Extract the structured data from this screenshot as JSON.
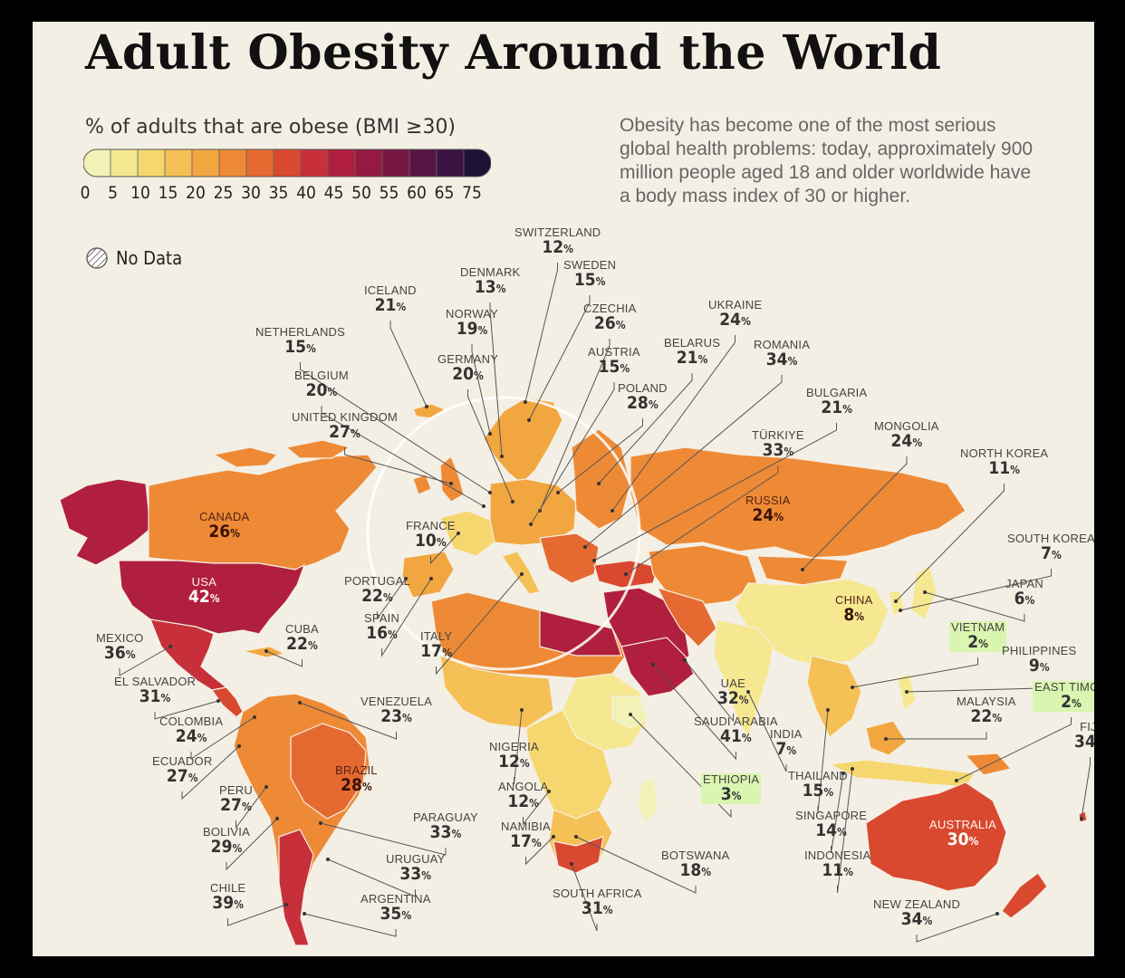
{
  "title": "Adult Obesity Around the World",
  "legend": {
    "title": "% of adults that are obese (BMI ≥30)",
    "ticks": [
      "0",
      "5",
      "10",
      "15",
      "20",
      "25",
      "30",
      "35",
      "40",
      "45",
      "50",
      "55",
      "60",
      "65",
      "75"
    ],
    "colors": [
      "#f2f2b6",
      "#f6e891",
      "#f6d66e",
      "#f5c055",
      "#f2a640",
      "#ee8a36",
      "#e56a32",
      "#d9492f",
      "#c7303a",
      "#b01f3d",
      "#941a42",
      "#761743",
      "#561545",
      "#3b1343",
      "#1f1036"
    ],
    "no_data_label": "No Data"
  },
  "description": "Obesity has become one of the most serious global health problems: today, approximately 900 million people aged 18 and older worldwide have a body mass index of 30 or higher.",
  "percent_sign": "%",
  "countries": [
    {
      "name": "SWITZERLAND",
      "value": 12
    },
    {
      "name": "DENMARK",
      "value": 13
    },
    {
      "name": "SWEDEN",
      "value": 15
    },
    {
      "name": "ICELAND",
      "value": 21
    },
    {
      "name": "NORWAY",
      "value": 19
    },
    {
      "name": "CZECHIA",
      "value": 26
    },
    {
      "name": "UKRAINE",
      "value": 24
    },
    {
      "name": "NETHERLANDS",
      "value": 15
    },
    {
      "name": "GERMANY",
      "value": 20
    },
    {
      "name": "AUSTRIA",
      "value": 15
    },
    {
      "name": "BELARUS",
      "value": 21
    },
    {
      "name": "ROMANIA",
      "value": 34
    },
    {
      "name": "BELGIUM",
      "value": 20
    },
    {
      "name": "POLAND",
      "value": 28
    },
    {
      "name": "BULGARIA",
      "value": 21
    },
    {
      "name": "UNITED KINGDOM",
      "value": 27
    },
    {
      "name": "TÜRKIYE",
      "value": 33
    },
    {
      "name": "MONGOLIA",
      "value": 24
    },
    {
      "name": "NORTH KOREA",
      "value": 11
    },
    {
      "name": "CANADA",
      "value": 26
    },
    {
      "name": "RUSSIA",
      "value": 24
    },
    {
      "name": "FRANCE",
      "value": 10
    },
    {
      "name": "SOUTH KOREA",
      "value": 7
    },
    {
      "name": "USA",
      "value": 42
    },
    {
      "name": "PORTUGAL",
      "value": 22
    },
    {
      "name": "JAPAN",
      "value": 6
    },
    {
      "name": "CHINA",
      "value": 8
    },
    {
      "name": "SPAIN",
      "value": 16
    },
    {
      "name": "CUBA",
      "value": 22
    },
    {
      "name": "MEXICO",
      "value": 36
    },
    {
      "name": "ITALY",
      "value": 17
    },
    {
      "name": "VIETNAM",
      "value": 2
    },
    {
      "name": "PHILIPPINES",
      "value": 9
    },
    {
      "name": "EL SALVADOR",
      "value": 31
    },
    {
      "name": "UAE",
      "value": 32
    },
    {
      "name": "EAST TIMOR",
      "value": 2
    },
    {
      "name": "VENEZUELA",
      "value": 23
    },
    {
      "name": "MALAYSIA",
      "value": 22
    },
    {
      "name": "COLOMBIA",
      "value": 24
    },
    {
      "name": "SAUDI ARABIA",
      "value": 41
    },
    {
      "name": "INDIA",
      "value": 7
    },
    {
      "name": "FIJI",
      "value": 34
    },
    {
      "name": "NIGERIA",
      "value": 12
    },
    {
      "name": "ECUADOR",
      "value": 27
    },
    {
      "name": "BRAZIL",
      "value": 28
    },
    {
      "name": "THAILAND",
      "value": 15
    },
    {
      "name": "ETHIOPIA",
      "value": 3
    },
    {
      "name": "PERU",
      "value": 27
    },
    {
      "name": "ANGOLA",
      "value": 12
    },
    {
      "name": "SINGAPORE",
      "value": 14
    },
    {
      "name": "AUSTRALIA",
      "value": 30
    },
    {
      "name": "PARAGUAY",
      "value": 33
    },
    {
      "name": "NAMIBIA",
      "value": 17
    },
    {
      "name": "BOLIVIA",
      "value": 29
    },
    {
      "name": "URUGUAY",
      "value": 33
    },
    {
      "name": "BOTSWANA",
      "value": 18
    },
    {
      "name": "INDONESIA",
      "value": 11
    },
    {
      "name": "SOUTH AFRICA",
      "value": 31
    },
    {
      "name": "CHILE",
      "value": 39
    },
    {
      "name": "ARGENTINA",
      "value": 35
    },
    {
      "name": "NEW ZEALAND",
      "value": 34
    }
  ]
}
